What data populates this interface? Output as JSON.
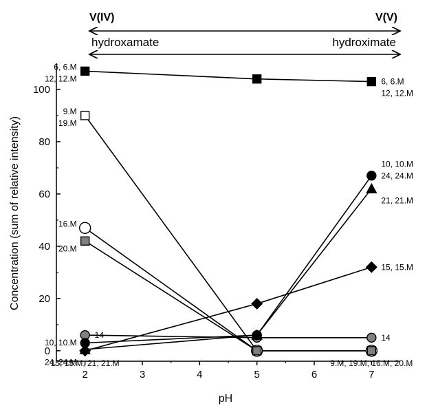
{
  "header": {
    "left_state": "V(IV)",
    "right_state": "V(V)",
    "left_form": "hydroxamate",
    "right_form": "hydroximate"
  },
  "chart_data": {
    "type": "line",
    "x": [
      2,
      5,
      7
    ],
    "xlabel": "pH",
    "ylabel": "Concentration (sum of relative intensity)",
    "xlim": [
      1.5,
      7.5
    ],
    "ylim": [
      -4,
      110
    ],
    "xticks": [
      2,
      3,
      4,
      5,
      6,
      7
    ],
    "yticks": [
      0,
      20,
      40,
      60,
      80,
      100
    ],
    "grid": false,
    "series": [
      {
        "values": [
          107,
          104,
          103
        ],
        "marker": "square",
        "fill": "#000000"
      },
      {
        "values": [
          90,
          0,
          0
        ],
        "marker": "square",
        "fill": "#ffffff"
      },
      {
        "values": [
          47,
          0,
          0
        ],
        "marker": "circle",
        "fill": "#ffffff"
      },
      {
        "values": [
          42,
          0,
          0
        ],
        "marker": "square",
        "fill": "#808080"
      },
      {
        "values": [
          6,
          5,
          5
        ],
        "marker": "circle",
        "fill": "#808080"
      },
      {
        "values": [
          3,
          6,
          67
        ],
        "marker": "circle",
        "fill": "#000000"
      },
      {
        "values": [
          0.5,
          6,
          62
        ],
        "marker": "triangle",
        "fill": "#000000"
      },
      {
        "values": [
          0,
          18,
          32
        ],
        "marker": "diamond",
        "fill": "#000000"
      }
    ],
    "annotations": [
      {
        "text": "6, 6.M",
        "x": 2,
        "y": 107,
        "side": "left",
        "line": 0
      },
      {
        "text": "12, 12.M",
        "x": 2,
        "y": 107,
        "side": "left",
        "line": 1
      },
      {
        "text": "9.M",
        "x": 2,
        "y": 90,
        "side": "left",
        "line": 0
      },
      {
        "text": "19.M",
        "x": 2,
        "y": 90,
        "side": "left",
        "line": 1
      },
      {
        "text": "16.M",
        "x": 2,
        "y": 47,
        "side": "left",
        "line": 0
      },
      {
        "text": "20.M",
        "x": 2,
        "y": 42,
        "side": "left",
        "line": 1
      },
      {
        "text": "14",
        "x": 2,
        "y": 6,
        "side": "right",
        "line": 0
      },
      {
        "text": "10, 10.M",
        "x": 2,
        "y": 6,
        "side": "left",
        "line": 1
      },
      {
        "text": "24, 24.M",
        "x": 2,
        "y": 3,
        "side": "left",
        "line": 2
      },
      {
        "text": "15, 15.M, 21, 21.M",
        "x": 2,
        "y": 0,
        "side": "below",
        "line": 0
      },
      {
        "text": "6, 6.M",
        "x": 7,
        "y": 103,
        "side": "right",
        "line": 0
      },
      {
        "text": "12, 12.M",
        "x": 7,
        "y": 103,
        "side": "right",
        "line": 1
      },
      {
        "text": "10, 10.M",
        "x": 7,
        "y": 67,
        "side": "right",
        "line": -1
      },
      {
        "text": "24, 24.M",
        "x": 7,
        "y": 67,
        "side": "right",
        "line": 0
      },
      {
        "text": "21, 21.M",
        "x": 7,
        "y": 62,
        "side": "right",
        "line": 1
      },
      {
        "text": "15, 15.M",
        "x": 7,
        "y": 32,
        "side": "right",
        "line": 0
      },
      {
        "text": "14",
        "x": 7,
        "y": 5,
        "side": "right",
        "line": 0
      },
      {
        "text": "9.M, 19.M, 16.M, 20.M",
        "x": 7,
        "y": 0,
        "side": "below",
        "line": 0
      }
    ]
  }
}
